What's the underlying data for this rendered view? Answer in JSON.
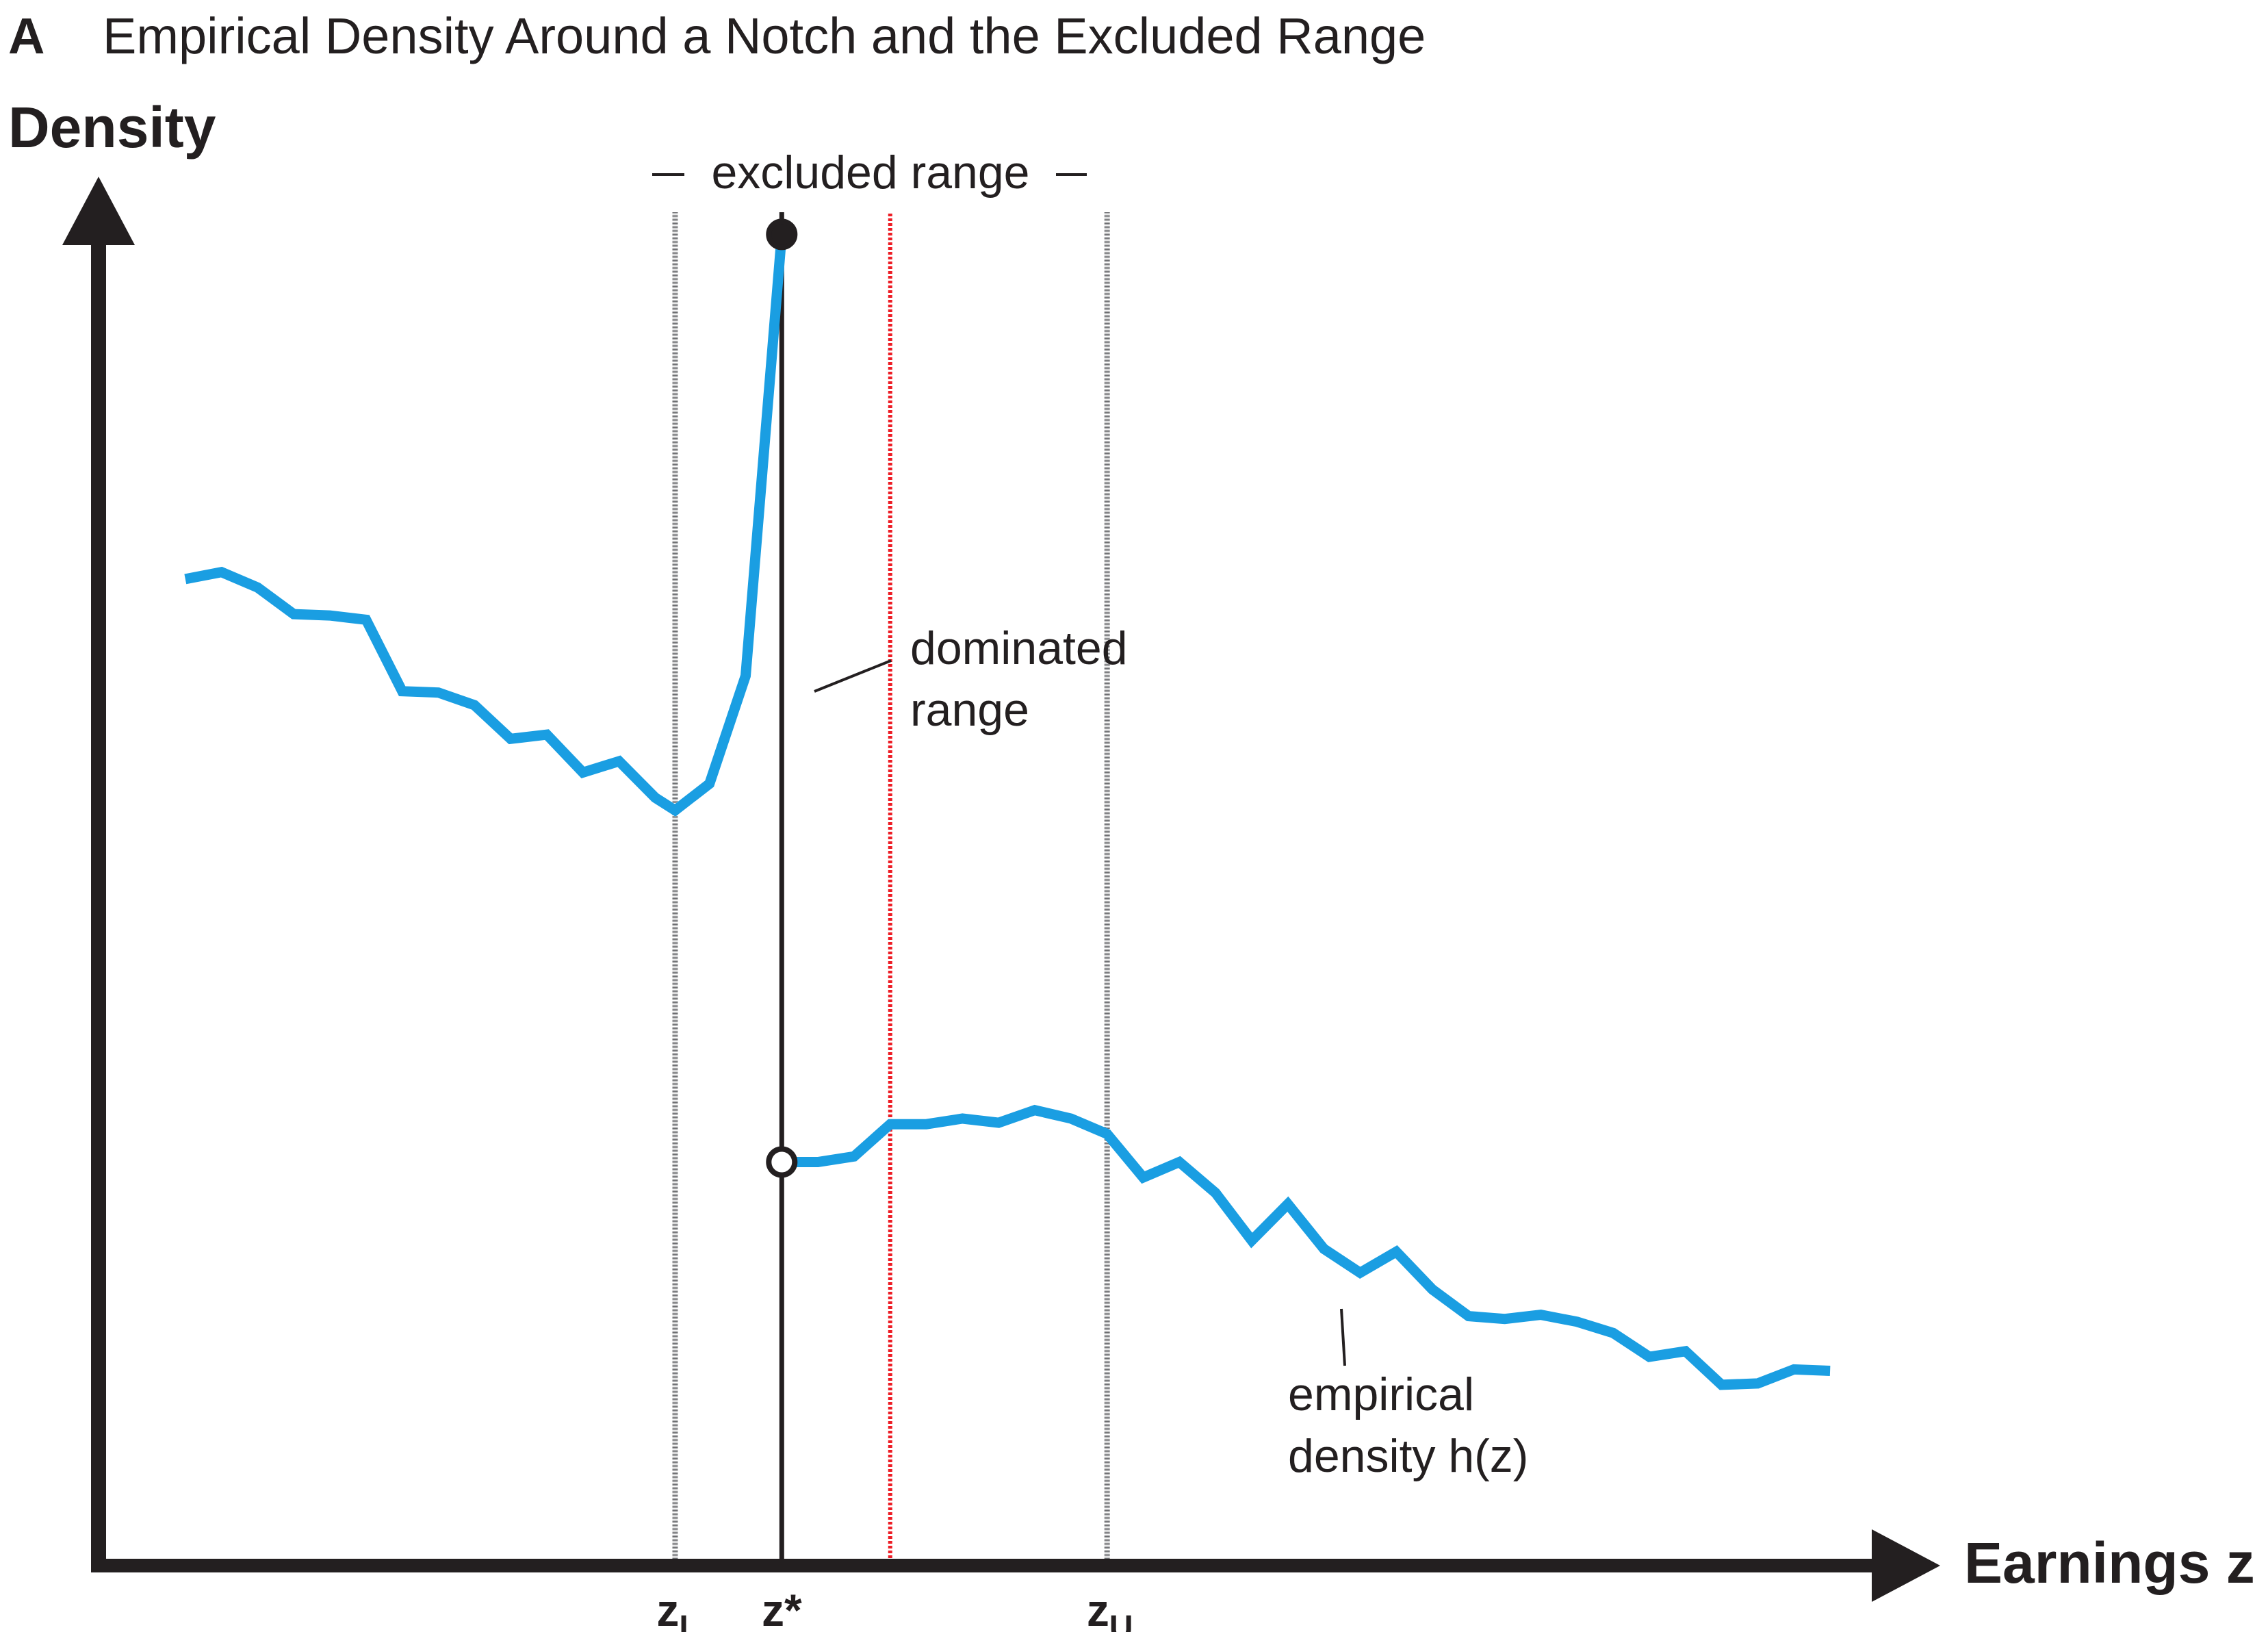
{
  "panel_letter": "A",
  "chart_data": {
    "type": "line",
    "title": "Empirical Density Around a Notch and the Excluded Range",
    "ylabel": "Density",
    "xlabel": "Earnings z",
    "grid": false,
    "legend": "none",
    "ylim": [
      0,
      100
    ],
    "xlim": [
      0,
      100
    ],
    "tick_labels": [
      {
        "id": "zL",
        "main": "z",
        "sub": "L",
        "sup": "",
        "x": 31.9
      },
      {
        "id": "zstar",
        "main": "z",
        "sub": "",
        "sup": "*",
        "x": 37.8
      },
      {
        "id": "zU",
        "main": "z",
        "sub": "U",
        "sup": "",
        "x": 55.8
      }
    ],
    "reference_lines": [
      {
        "id": "zL-line",
        "x": 31.9,
        "style": "solid",
        "color": "#6d6e71"
      },
      {
        "id": "zstar-line",
        "x": 37.8,
        "style": "solid",
        "color": "#231f20"
      },
      {
        "id": "zD-line",
        "x": 43.8,
        "style": "dotted",
        "color": "#ed1c24"
      },
      {
        "id": "zU-line",
        "x": 55.8,
        "style": "solid",
        "color": "#6d6e71"
      }
    ],
    "series": [
      {
        "color": "#1a9ee2",
        "segments": [
          {
            "points": [
              [
                4.8,
                70.4
              ],
              [
                6.8,
                70.9
              ],
              [
                8.8,
                69.8
              ],
              [
                10.8,
                67.9
              ],
              [
                12.8,
                67.8
              ],
              [
                14.8,
                67.5
              ],
              [
                16.8,
                62.4
              ],
              [
                18.8,
                62.3
              ],
              [
                20.8,
                61.4
              ],
              [
                22.8,
                59.0
              ],
              [
                24.8,
                59.3
              ],
              [
                26.8,
                56.6
              ],
              [
                28.8,
                57.4
              ],
              [
                30.8,
                54.8
              ],
              [
                31.9,
                53.9
              ],
              [
                33.8,
                55.8
              ],
              [
                35.8,
                63.5
              ],
              [
                37.8,
                95.0
              ]
            ]
          },
          {
            "points": [
              [
                37.8,
                28.8
              ],
              [
                39.8,
                28.8
              ],
              [
                41.8,
                29.2
              ],
              [
                43.8,
                31.5
              ],
              [
                45.8,
                31.5
              ],
              [
                47.8,
                31.9
              ],
              [
                49.8,
                31.6
              ],
              [
                51.8,
                32.5
              ],
              [
                53.8,
                31.9
              ],
              [
                55.8,
                30.8
              ],
              [
                57.8,
                27.7
              ],
              [
                59.8,
                28.8
              ],
              [
                61.8,
                26.6
              ],
              [
                63.8,
                23.2
              ],
              [
                65.8,
                25.8
              ],
              [
                67.8,
                22.6
              ],
              [
                69.8,
                20.9
              ],
              [
                71.8,
                22.4
              ],
              [
                73.8,
                19.7
              ],
              [
                75.8,
                17.8
              ],
              [
                77.8,
                17.6
              ],
              [
                79.8,
                17.9
              ],
              [
                81.8,
                17.4
              ],
              [
                83.8,
                16.6
              ],
              [
                85.8,
                14.9
              ],
              [
                87.8,
                15.3
              ],
              [
                89.8,
                12.9
              ],
              [
                91.8,
                13.0
              ],
              [
                93.8,
                14.0
              ],
              [
                95.8,
                13.9
              ]
            ]
          }
        ]
      }
    ],
    "markers": [
      {
        "id": "filled-marker",
        "x": 37.8,
        "y": 95.0,
        "fill": "filled"
      },
      {
        "id": "open-marker",
        "x": 37.8,
        "y": 28.8,
        "fill": "open"
      }
    ],
    "annotations": {
      "excluded_range": "excluded range",
      "dominated_range_lines": [
        "dominated",
        "range"
      ],
      "empirical_density_lines": [
        "empirical",
        "density h(z)"
      ]
    }
  }
}
